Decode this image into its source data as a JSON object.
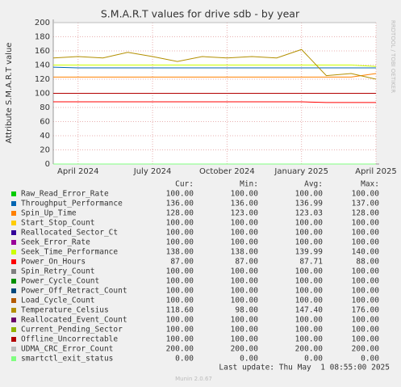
{
  "chart_data": {
    "type": "line",
    "title": "S.M.A.R.T values for drive sdb - by year",
    "y_label": "Attribute S.M.A.R.T value",
    "side_text": "RRDTOOL / TOBI OETIKER",
    "x": [
      "2024-03",
      "2024-04",
      "2024-05",
      "2024-06",
      "2024-07",
      "2024-08",
      "2024-09",
      "2024-10",
      "2024-11",
      "2024-12",
      "2025-01",
      "2025-02",
      "2025-03",
      "2025-04"
    ],
    "xlim": [
      "2024-03",
      "2025-04"
    ],
    "xticks": [
      {
        "value": "2024-04",
        "label": "April 2024"
      },
      {
        "value": "2024-07",
        "label": "July 2024"
      },
      {
        "value": "2024-10",
        "label": "October 2024"
      },
      {
        "value": "2025-01",
        "label": "January 2025"
      },
      {
        "value": "2025-04",
        "label": "April 2025"
      }
    ],
    "ylim": [
      0,
      200
    ],
    "yticks": [
      0,
      20,
      40,
      60,
      80,
      100,
      120,
      140,
      160,
      180,
      200
    ],
    "grid": true,
    "legend_columns": [
      "Cur:",
      "Min:",
      "Avg:",
      "Max:"
    ],
    "series": [
      {
        "name": "Raw_Read_Error_Rate",
        "color": "#00cc00",
        "values": [
          100,
          100,
          100,
          100,
          100,
          100,
          100,
          100,
          100,
          100,
          100,
          100,
          100,
          100
        ],
        "stats": [
          "100.00",
          "100.00",
          "100.00",
          "100.00"
        ]
      },
      {
        "name": "Throughput_Performance",
        "color": "#0066b3",
        "values": [
          137,
          136,
          136,
          136,
          136,
          136,
          136,
          136,
          136,
          136,
          136,
          136,
          136,
          136
        ],
        "stats": [
          "136.00",
          "136.00",
          "136.99",
          "137.00"
        ]
      },
      {
        "name": "Spin_Up_Time",
        "color": "#ff8000",
        "values": [
          123,
          123,
          123,
          123,
          123,
          123,
          123,
          123,
          123,
          123,
          123,
          123,
          123,
          128
        ],
        "stats": [
          "128.00",
          "123.00",
          "123.03",
          "128.00"
        ]
      },
      {
        "name": "Start_Stop_Count",
        "color": "#ffcc00",
        "values": [
          100,
          100,
          100,
          100,
          100,
          100,
          100,
          100,
          100,
          100,
          100,
          100,
          100,
          100
        ],
        "stats": [
          "100.00",
          "100.00",
          "100.00",
          "100.00"
        ]
      },
      {
        "name": "Reallocated_Sector_Ct",
        "color": "#330099",
        "values": [
          100,
          100,
          100,
          100,
          100,
          100,
          100,
          100,
          100,
          100,
          100,
          100,
          100,
          100
        ],
        "stats": [
          "100.00",
          "100.00",
          "100.00",
          "100.00"
        ]
      },
      {
        "name": "Seek_Error_Rate",
        "color": "#990099",
        "values": [
          100,
          100,
          100,
          100,
          100,
          100,
          100,
          100,
          100,
          100,
          100,
          100,
          100,
          100
        ],
        "stats": [
          "100.00",
          "100.00",
          "100.00",
          "100.00"
        ]
      },
      {
        "name": "Seek_Time_Performance",
        "color": "#ccff00",
        "values": [
          140,
          140,
          140,
          140,
          140,
          140,
          140,
          140,
          140,
          140,
          140,
          140,
          140,
          138
        ],
        "stats": [
          "138.00",
          "138.00",
          "139.99",
          "140.00"
        ]
      },
      {
        "name": "Power_On_Hours",
        "color": "#ff0000",
        "values": [
          88,
          88,
          88,
          88,
          88,
          88,
          88,
          88,
          88,
          88,
          88,
          87,
          87,
          87
        ],
        "stats": [
          "87.00",
          "87.00",
          "87.71",
          "88.00"
        ]
      },
      {
        "name": "Spin_Retry_Count",
        "color": "#808080",
        "values": [
          100,
          100,
          100,
          100,
          100,
          100,
          100,
          100,
          100,
          100,
          100,
          100,
          100,
          100
        ],
        "stats": [
          "100.00",
          "100.00",
          "100.00",
          "100.00"
        ]
      },
      {
        "name": "Power_Cycle_Count",
        "color": "#008f00",
        "values": [
          100,
          100,
          100,
          100,
          100,
          100,
          100,
          100,
          100,
          100,
          100,
          100,
          100,
          100
        ],
        "stats": [
          "100.00",
          "100.00",
          "100.00",
          "100.00"
        ]
      },
      {
        "name": "Power_Off_Retract_Count",
        "color": "#00487d",
        "values": [
          100,
          100,
          100,
          100,
          100,
          100,
          100,
          100,
          100,
          100,
          100,
          100,
          100,
          100
        ],
        "stats": [
          "100.00",
          "100.00",
          "100.00",
          "100.00"
        ]
      },
      {
        "name": "Load_Cycle_Count",
        "color": "#b35a00",
        "values": [
          100,
          100,
          100,
          100,
          100,
          100,
          100,
          100,
          100,
          100,
          100,
          100,
          100,
          100
        ],
        "stats": [
          "100.00",
          "100.00",
          "100.00",
          "100.00"
        ]
      },
      {
        "name": "Temperature_Celsius",
        "color": "#b38f00",
        "values": [
          150,
          152,
          150,
          158,
          152,
          145,
          152,
          150,
          152,
          150,
          162,
          125,
          128,
          120
        ],
        "stats": [
          "118.60",
          "98.00",
          "147.40",
          "176.00"
        ]
      },
      {
        "name": "Reallocated_Event_Count",
        "color": "#6b006b",
        "values": [
          100,
          100,
          100,
          100,
          100,
          100,
          100,
          100,
          100,
          100,
          100,
          100,
          100,
          100
        ],
        "stats": [
          "100.00",
          "100.00",
          "100.00",
          "100.00"
        ]
      },
      {
        "name": "Current_Pending_Sector",
        "color": "#8fb300",
        "values": [
          100,
          100,
          100,
          100,
          100,
          100,
          100,
          100,
          100,
          100,
          100,
          100,
          100,
          100
        ],
        "stats": [
          "100.00",
          "100.00",
          "100.00",
          "100.00"
        ]
      },
      {
        "name": "Offline_Uncorrectable",
        "color": "#b30000",
        "values": [
          100,
          100,
          100,
          100,
          100,
          100,
          100,
          100,
          100,
          100,
          100,
          100,
          100,
          100
        ],
        "stats": [
          "100.00",
          "100.00",
          "100.00",
          "100.00"
        ]
      },
      {
        "name": "UDMA_CRC_Error_Count",
        "color": "#bebebe",
        "values": [
          200,
          200,
          200,
          200,
          200,
          200,
          200,
          200,
          200,
          200,
          200,
          200,
          200,
          200
        ],
        "stats": [
          "200.00",
          "200.00",
          "200.00",
          "200.00"
        ]
      },
      {
        "name": "smartctl_exit_status",
        "color": "#80ff80",
        "values": [
          0,
          0,
          0,
          0,
          0,
          0,
          0,
          0,
          0,
          0,
          0,
          0,
          0,
          0
        ],
        "stats": [
          "0.00",
          "0.00",
          "0.00",
          "0.00"
        ]
      }
    ],
    "last_update": "Last update: Thu May  1 08:55:00 2025",
    "version": "Munin 2.0.67"
  }
}
